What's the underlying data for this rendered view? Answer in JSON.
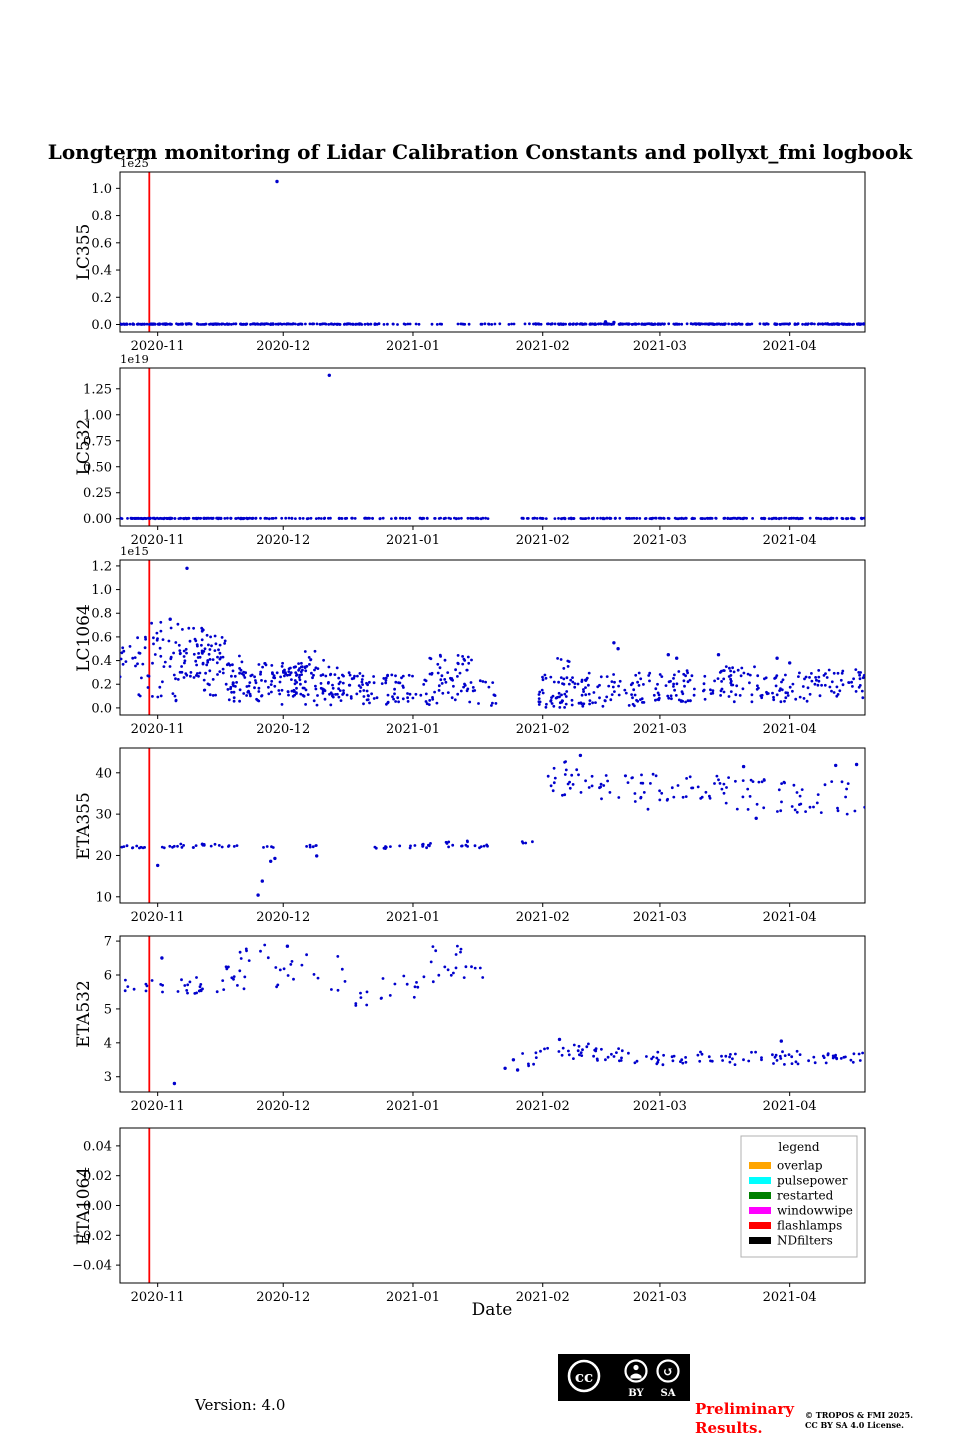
{
  "title": "Longterm monitoring of Lidar Calibration Constants and pollyxt_fmi logbook",
  "figure": {
    "x_axis": {
      "xlabel": "Date",
      "x_unit": "days since 2020-10-23",
      "domain_days": [
        0,
        178
      ],
      "ticks": [
        {
          "day": 9,
          "label": "2020-11"
        },
        {
          "day": 39,
          "label": "2020-12"
        },
        {
          "day": 70,
          "label": "2021-01"
        },
        {
          "day": 101,
          "label": "2021-02"
        },
        {
          "day": 129,
          "label": "2021-03"
        },
        {
          "day": 160,
          "label": "2021-04"
        }
      ]
    },
    "event_line": {
      "day": 7,
      "date": "2020-10-30",
      "color": "#ff0000",
      "event": "flashlamps"
    }
  },
  "chart_data": [
    {
      "type": "scatter",
      "name": "LC355",
      "ylabel": "LC355",
      "offset_label": "1e25",
      "points_color": "#0000cc",
      "ylim": [
        -0.055,
        1.12
      ],
      "yticks": [
        {
          "v": 0.0,
          "label": "0.0"
        },
        {
          "v": 0.2,
          "label": "0.2"
        },
        {
          "v": 0.4,
          "label": "0.4"
        },
        {
          "v": 0.6,
          "label": "0.6"
        },
        {
          "v": 0.8,
          "label": "0.8"
        },
        {
          "v": 1.0,
          "label": "1.0"
        }
      ],
      "clusters": [
        [
          0,
          40,
          160,
          0,
          0.006
        ],
        [
          40,
          62,
          70,
          0,
          0.006
        ],
        [
          63,
          95,
          32,
          0,
          0.005
        ],
        [
          96,
          120,
          80,
          0,
          0.006
        ],
        [
          120,
          178,
          220,
          0,
          0.006
        ]
      ],
      "outliers": [
        [
          37.5,
          1.05
        ],
        [
          116,
          0.02
        ],
        [
          118,
          0.015
        ]
      ],
      "show_legend": false
    },
    {
      "type": "scatter",
      "name": "LC532",
      "ylabel": "LC532",
      "offset_label": "1e19",
      "points_color": "#0000cc",
      "ylim": [
        -0.07,
        1.45
      ],
      "yticks": [
        {
          "v": 0.0,
          "label": "0.00"
        },
        {
          "v": 0.25,
          "label": "0.25"
        },
        {
          "v": 0.5,
          "label": "0.50"
        },
        {
          "v": 0.75,
          "label": "0.75"
        },
        {
          "v": 1.0,
          "label": "1.00"
        },
        {
          "v": 1.25,
          "label": "1.25"
        }
      ],
      "clusters": [
        [
          0,
          30,
          120,
          0,
          0.006
        ],
        [
          30,
          55,
          45,
          0,
          0.006
        ],
        [
          55,
          88,
          60,
          0,
          0.006
        ],
        [
          96,
          178,
          200,
          0,
          0.006
        ]
      ],
      "outliers": [
        [
          50,
          1.38
        ]
      ],
      "show_legend": false
    },
    {
      "type": "scatter",
      "name": "LC1064",
      "ylabel": "LC1064",
      "offset_label": "1e15",
      "points_color": "#0000cc",
      "ylim": [
        -0.06,
        1.25
      ],
      "yticks": [
        {
          "v": 0.0,
          "label": "0.0"
        },
        {
          "v": 0.2,
          "label": "0.2"
        },
        {
          "v": 0.4,
          "label": "0.4"
        },
        {
          "v": 0.6,
          "label": "0.6"
        },
        {
          "v": 0.8,
          "label": "0.8"
        },
        {
          "v": 1.0,
          "label": "1.0"
        },
        {
          "v": 1.2,
          "label": "1.2"
        }
      ],
      "clusters": [
        [
          0,
          7,
          25,
          0.08,
          0.62
        ],
        [
          7,
          14,
          35,
          0.05,
          0.75
        ],
        [
          14,
          20,
          40,
          0.25,
          0.68
        ],
        [
          18,
          26,
          30,
          0.35,
          0.62
        ],
        [
          20,
          30,
          40,
          0.1,
          0.45
        ],
        [
          26,
          34,
          25,
          0.05,
          0.3
        ],
        [
          30,
          44,
          60,
          0.1,
          0.38
        ],
        [
          38,
          52,
          80,
          0.02,
          0.35
        ],
        [
          44,
          50,
          10,
          0.3,
          0.5
        ],
        [
          52,
          62,
          50,
          0.02,
          0.3
        ],
        [
          62,
          70,
          35,
          0.02,
          0.28
        ],
        [
          70,
          84,
          40,
          0.02,
          0.3
        ],
        [
          74,
          78,
          12,
          0.2,
          0.47
        ],
        [
          80,
          84,
          14,
          0.25,
          0.48
        ],
        [
          84,
          90,
          15,
          0.02,
          0.25
        ],
        [
          100,
          112,
          70,
          0.0,
          0.28
        ],
        [
          104,
          108,
          6,
          0.3,
          0.42
        ],
        [
          112,
          126,
          50,
          0.0,
          0.3
        ],
        [
          126,
          140,
          55,
          0.05,
          0.32
        ],
        [
          140,
          152,
          45,
          0.05,
          0.35
        ],
        [
          152,
          166,
          50,
          0.05,
          0.3
        ],
        [
          166,
          178,
          45,
          0.08,
          0.33
        ]
      ],
      "outliers": [
        [
          16,
          1.18
        ],
        [
          12,
          0.75
        ],
        [
          118,
          0.55
        ],
        [
          119,
          0.5
        ],
        [
          131,
          0.45
        ],
        [
          133,
          0.42
        ],
        [
          143,
          0.45
        ],
        [
          157,
          0.42
        ],
        [
          160,
          0.38
        ]
      ],
      "show_legend": false
    },
    {
      "type": "scatter",
      "name": "ETA355",
      "ylabel": "ETA355",
      "offset_label": null,
      "points_color": "#0000cc",
      "ylim": [
        8.5,
        46
      ],
      "yticks": [
        {
          "v": 10,
          "label": "10"
        },
        {
          "v": 20,
          "label": "20"
        },
        {
          "v": 30,
          "label": "30"
        },
        {
          "v": 40,
          "label": "40"
        }
      ],
      "clusters": [
        [
          0,
          6,
          10,
          21.6,
          22.4
        ],
        [
          10,
          14,
          6,
          21.8,
          22.3
        ],
        [
          14,
          24,
          14,
          21.9,
          22.8
        ],
        [
          24,
          28,
          5,
          22.0,
          22.5
        ],
        [
          34,
          37,
          4,
          21.8,
          22.3
        ],
        [
          43,
          47,
          6,
          21.8,
          22.6
        ],
        [
          60,
          67,
          8,
          21.6,
          22.4
        ],
        [
          67,
          78,
          12,
          21.8,
          23.2
        ],
        [
          78,
          84,
          10,
          22.0,
          23.6
        ],
        [
          84,
          88,
          6,
          21.8,
          22.6
        ],
        [
          96,
          99,
          4,
          22.9,
          23.4
        ],
        [
          102,
          108,
          10,
          33.5,
          42.0
        ],
        [
          106,
          114,
          14,
          35,
          44
        ],
        [
          114,
          124,
          16,
          33,
          41
        ],
        [
          124,
          134,
          18,
          31,
          40
        ],
        [
          134,
          146,
          22,
          31.5,
          39.5
        ],
        [
          146,
          160,
          22,
          30.5,
          38.5
        ],
        [
          160,
          178,
          26,
          30,
          38
        ]
      ],
      "outliers": [
        [
          9,
          17.6
        ],
        [
          33,
          10.4
        ],
        [
          34,
          13.8
        ],
        [
          36,
          18.6
        ],
        [
          37,
          19.3
        ],
        [
          47,
          19.9
        ],
        [
          152,
          29.0
        ],
        [
          149,
          41.5
        ],
        [
          171,
          41.8
        ],
        [
          176,
          42.0
        ],
        [
          110,
          44.2
        ]
      ],
      "show_legend": false
    },
    {
      "type": "scatter",
      "name": "ETA532",
      "ylabel": "ETA532",
      "offset_label": null,
      "points_color": "#0000cc",
      "ylim": [
        2.55,
        7.15
      ],
      "yticks": [
        {
          "v": 3,
          "label": "3"
        },
        {
          "v": 4,
          "label": "4"
        },
        {
          "v": 5,
          "label": "5"
        },
        {
          "v": 6,
          "label": "6"
        },
        {
          "v": 7,
          "label": "7"
        }
      ],
      "clusters": [
        [
          0,
          8,
          8,
          5.5,
          5.85
        ],
        [
          8,
          20,
          20,
          5.45,
          6.0
        ],
        [
          20,
          30,
          14,
          5.5,
          6.25
        ],
        [
          28,
          36,
          8,
          6.2,
          6.9
        ],
        [
          36,
          44,
          10,
          5.6,
          6.5
        ],
        [
          44,
          54,
          8,
          5.5,
          6.6
        ],
        [
          54,
          60,
          6,
          4.95,
          5.8
        ],
        [
          62,
          74,
          12,
          5.3,
          6.0
        ],
        [
          74,
          82,
          14,
          5.7,
          6.95
        ],
        [
          82,
          87,
          6,
          5.9,
          6.3
        ],
        [
          96,
          102,
          8,
          3.3,
          3.9
        ],
        [
          102,
          112,
          16,
          3.45,
          4.0
        ],
        [
          112,
          125,
          20,
          3.4,
          3.85
        ],
        [
          125,
          145,
          28,
          3.35,
          3.8
        ],
        [
          145,
          165,
          30,
          3.35,
          3.75
        ],
        [
          165,
          178,
          22,
          3.4,
          3.7
        ]
      ],
      "outliers": [
        [
          10,
          6.5
        ],
        [
          13,
          2.8
        ],
        [
          40,
          6.85
        ],
        [
          92,
          3.25
        ],
        [
          94,
          3.5
        ],
        [
          95,
          3.2
        ],
        [
          105,
          4.1
        ],
        [
          158,
          4.05
        ]
      ],
      "show_legend": false
    },
    {
      "type": "scatter",
      "name": "ETA1064",
      "ylabel": "ETA1064",
      "offset_label": null,
      "points_color": "#0000cc",
      "ylim": [
        -0.052,
        0.052
      ],
      "yticks": [
        {
          "v": -0.04,
          "label": "−0.04"
        },
        {
          "v": -0.02,
          "label": "−0.02"
        },
        {
          "v": 0.0,
          "label": "0.00"
        },
        {
          "v": 0.02,
          "label": "0.02"
        },
        {
          "v": 0.04,
          "label": "0.04"
        }
      ],
      "clusters": [],
      "outliers": [],
      "show_legend": true
    }
  ],
  "legend": {
    "title": "legend",
    "entries": [
      {
        "label": "overlap",
        "color": "#FFA500"
      },
      {
        "label": "pulsepower",
        "color": "#00FFFF"
      },
      {
        "label": "restarted",
        "color": "#008000"
      },
      {
        "label": "windowwipe",
        "color": "#FF00FF"
      },
      {
        "label": "flashlamps",
        "color": "#FF0000"
      },
      {
        "label": "NDfilters",
        "color": "#000000"
      }
    ]
  },
  "footer": {
    "version": "Version: 4.0",
    "preliminary_line1": "Preliminary",
    "preliminary_line2": "Results.",
    "preliminary_color": "#ff0000",
    "copyright_line1": "© TROPOS & FMI 2025.",
    "copyright_line2": "CC BY SA 4.0 License.",
    "cc_badge": {
      "cc_label": "cc",
      "by_label": "BY",
      "sa_label": "SA"
    }
  }
}
